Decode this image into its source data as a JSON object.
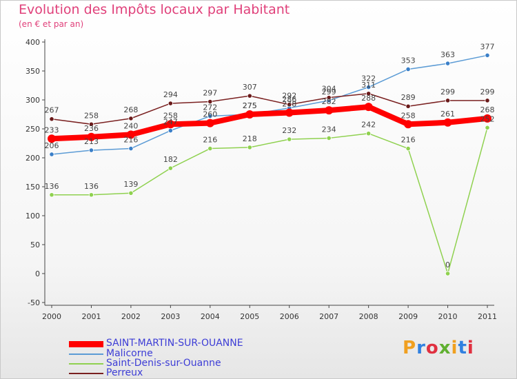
{
  "title": "Evolution des Impôts locaux par Habitant",
  "subtitle": "(en € et par an)",
  "brand": "Proxiti",
  "chart_data": {
    "type": "line",
    "title": "Evolution des Impôts locaux par Habitant",
    "subtitle": "(en € et par an)",
    "xlabel": "",
    "ylabel": "",
    "ylim": [
      -50,
      400
    ],
    "yticks": [
      "-50",
      "0",
      "50",
      "100",
      "150",
      "200",
      "250",
      "300",
      "350",
      "400"
    ],
    "grid": false,
    "legend": "bottom-left",
    "categories": [
      "2000",
      "2001",
      "2002",
      "2003",
      "2004",
      "2005",
      "2006",
      "2007",
      "2008",
      "2009",
      "2010",
      "2011"
    ],
    "series": [
      {
        "name": "SAINT-MARTIN-SUR-OUANNE",
        "color": "#ff0000",
        "values": [
          233,
          236,
          240,
          258,
          260,
          275,
          278,
          282,
          288,
          258,
          261,
          268
        ]
      },
      {
        "name": "Malicorne",
        "color": "#5b9bd5",
        "values": [
          206,
          213,
          216,
          247,
          272,
          275,
          286,
          299,
          322,
          353,
          363,
          377
        ]
      },
      {
        "name": "Saint-Denis-sur-Ouanne",
        "color": "#8fd14f",
        "values": [
          136,
          136,
          139,
          182,
          216,
          218,
          232,
          234,
          242,
          216,
          0,
          252
        ]
      },
      {
        "name": "Perreux",
        "color": "#7a2020",
        "values": [
          267,
          258,
          268,
          294,
          297,
          307,
          292,
          304,
          311,
          289,
          299,
          299
        ]
      }
    ]
  }
}
